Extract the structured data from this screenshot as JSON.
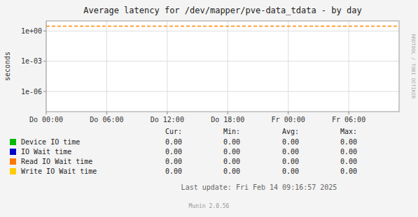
{
  "chart_data": {
    "type": "line",
    "title": "Average latency for /dev/mapper/pve-data_tdata - by day",
    "ylabel": "seconds",
    "log": "y",
    "grid": true,
    "legend": "bottom",
    "xlim": [
      0,
      1.458
    ],
    "xticks": [
      {
        "value": 0,
        "label": "Do 00:00"
      },
      {
        "value": 0.25,
        "label": "Do 06:00"
      },
      {
        "value": 0.5,
        "label": "Do 12:00"
      },
      {
        "value": 0.75,
        "label": "Do 18:00"
      },
      {
        "value": 1.0,
        "label": "Fr 00:00"
      },
      {
        "value": 1.25,
        "label": "Fr 06:00"
      }
    ],
    "ylim": [
      1e-08,
      10
    ],
    "yticks": [
      {
        "value": 1e-06,
        "label": "1e-06"
      },
      {
        "value": 0.001,
        "label": "1e-03"
      },
      {
        "value": 1,
        "label": "1e+00"
      }
    ],
    "series": [
      {
        "name": "Device IO time",
        "color": "#00bb00"
      },
      {
        "name": "IO Wait time",
        "color": "#0000cc"
      },
      {
        "name": "Read IO Wait time",
        "color": "#ff7700"
      },
      {
        "name": "Write IO Wait time",
        "color": "#ffcc00"
      }
    ],
    "reference_lines": [
      {
        "value": 3.0,
        "color": "#ff8800",
        "line_style": "dashed"
      }
    ],
    "table": {
      "columns": [
        "Cur:",
        "Min:",
        "Avg:",
        "Max:"
      ],
      "rows": [
        [
          "0.00",
          "0.00",
          "0.00",
          "0.00"
        ],
        [
          "0.00",
          "0.00",
          "0.00",
          "0.00"
        ],
        [
          "0.00",
          "0.00",
          "0.00",
          "0.00"
        ],
        [
          "0.00",
          "0.00",
          "0.00",
          "0.00"
        ]
      ]
    },
    "annotations": [
      "Last update: Fri Feb 14 09:16:57 2025",
      "Munin 2.0.56",
      "RRDTOOL / TOBI OETIKER"
    ]
  }
}
